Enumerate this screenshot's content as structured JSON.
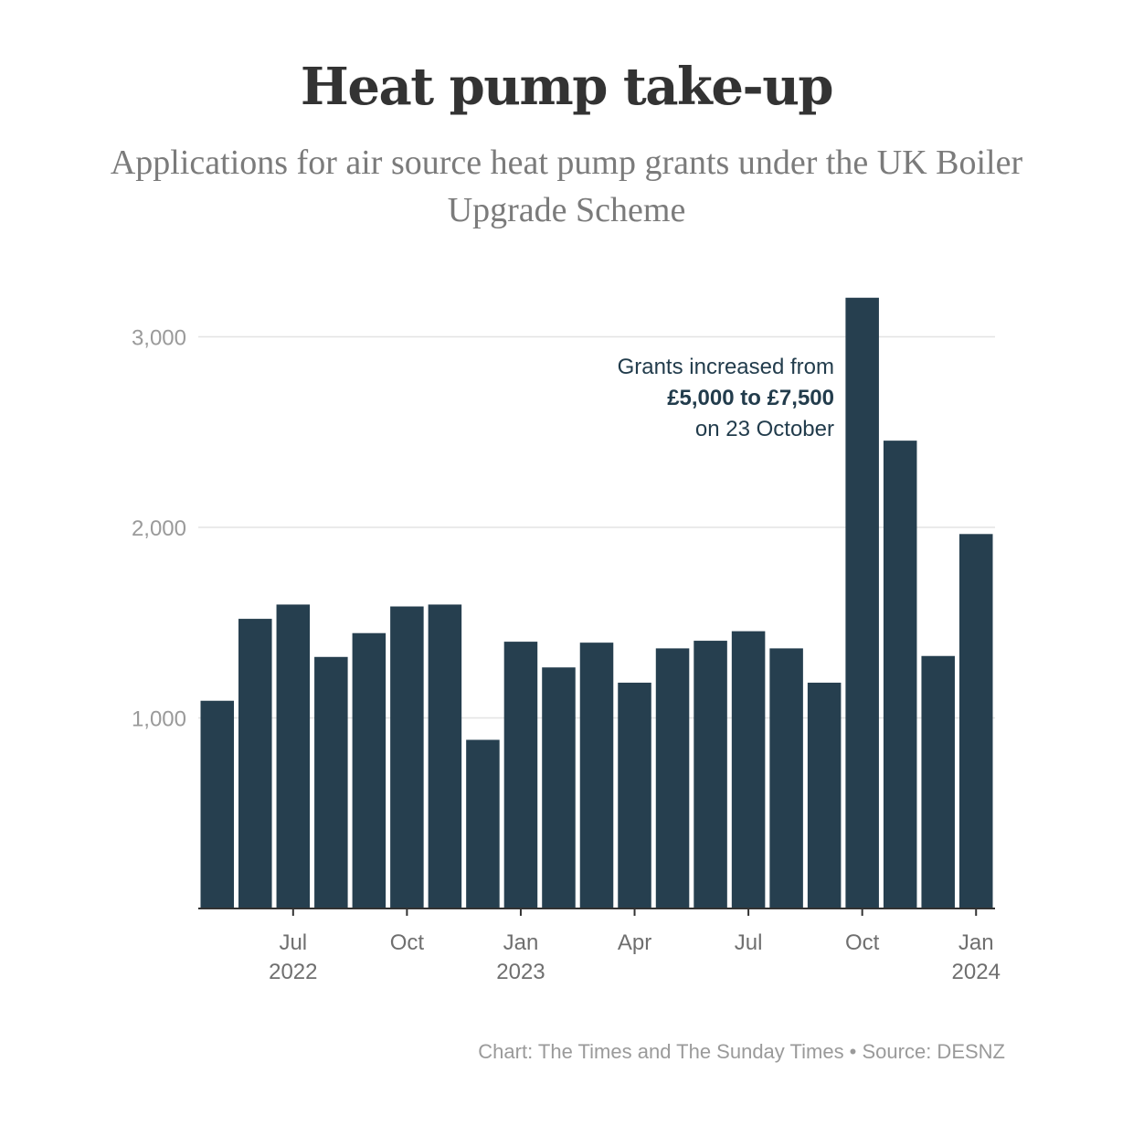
{
  "header": {
    "title": "Heat pump take-up",
    "subtitle": "Applications for air source heat pump grants under the UK Boiler Upgrade Scheme"
  },
  "colors": {
    "bar": "#263f4f",
    "grid": "#e3e3e3",
    "axis": "#333333",
    "annotation": "#223c4c"
  },
  "chart_data": {
    "type": "bar",
    "title": "Heat pump take-up",
    "subtitle": "Applications for air source heat pump grants under the UK Boiler Upgrade Scheme",
    "xlabel": "",
    "ylabel": "",
    "categories": [
      "2022-05",
      "2022-06",
      "2022-07",
      "2022-08",
      "2022-09",
      "2022-10",
      "2022-11",
      "2022-12",
      "2023-01",
      "2023-02",
      "2023-03",
      "2023-04",
      "2023-05",
      "2023-06",
      "2023-07",
      "2023-08",
      "2023-09",
      "2023-10",
      "2023-11",
      "2023-12",
      "2024-01"
    ],
    "values": [
      1090,
      1520,
      1595,
      1320,
      1445,
      1585,
      1595,
      885,
      1400,
      1265,
      1395,
      1185,
      1365,
      1405,
      1455,
      1365,
      1185,
      3205,
      2455,
      1325,
      1965
    ],
    "ylim": [
      0,
      3200
    ],
    "yticks": [
      {
        "value": 1000,
        "label": "1,000"
      },
      {
        "value": 2000,
        "label": "2,000"
      },
      {
        "value": 3000,
        "label": "3,000"
      }
    ],
    "xticks": [
      {
        "index": 2,
        "label": "Jul",
        "year": "2022"
      },
      {
        "index": 5,
        "label": "Oct",
        "year": ""
      },
      {
        "index": 8,
        "label": "Jan",
        "year": "2023"
      },
      {
        "index": 11,
        "label": "Apr",
        "year": ""
      },
      {
        "index": 14,
        "label": "Jul",
        "year": ""
      },
      {
        "index": 17,
        "label": "Oct",
        "year": ""
      },
      {
        "index": 20,
        "label": "Jan",
        "year": "2024"
      }
    ],
    "grid": true,
    "legend": "none",
    "annotation": {
      "line1": "Grants increased from",
      "line2": "£5,000 to £7,500",
      "line3": "on 23 October"
    }
  },
  "footer": {
    "source": "Chart: The Times and The Sunday Times • Source: DESNZ"
  }
}
